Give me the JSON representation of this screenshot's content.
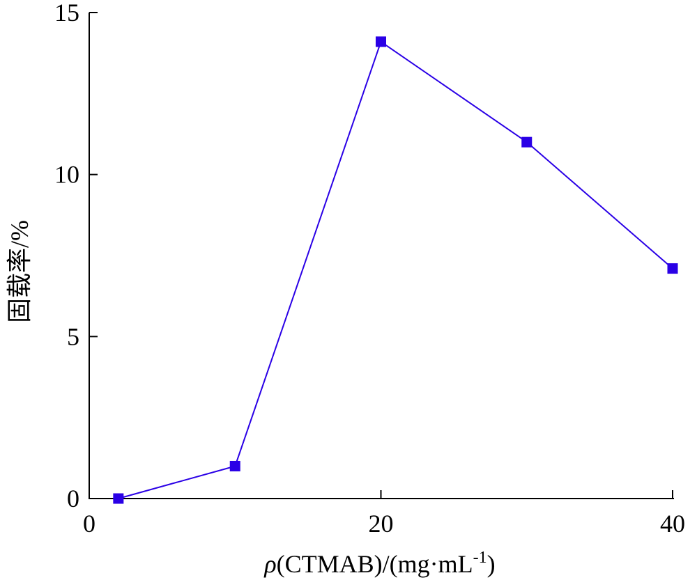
{
  "chart_data": {
    "type": "line",
    "title": "",
    "xlabel": {
      "rho": "ρ",
      "main": "(CTMAB)/(mg·mL",
      "sup": "-1",
      "close": ")"
    },
    "ylabel": "固载率/%",
    "xlim": [
      0,
      40
    ],
    "ylim": [
      0,
      15
    ],
    "xticks": [
      0,
      20,
      40
    ],
    "yticks": [
      0,
      5,
      10,
      15
    ],
    "grid": false,
    "series": [
      {
        "color": "#2a00e6",
        "marker": "square",
        "x": [
          2,
          10,
          20,
          30,
          40
        ],
        "y": [
          0.0,
          1.0,
          14.1,
          11.0,
          7.1
        ]
      }
    ]
  }
}
